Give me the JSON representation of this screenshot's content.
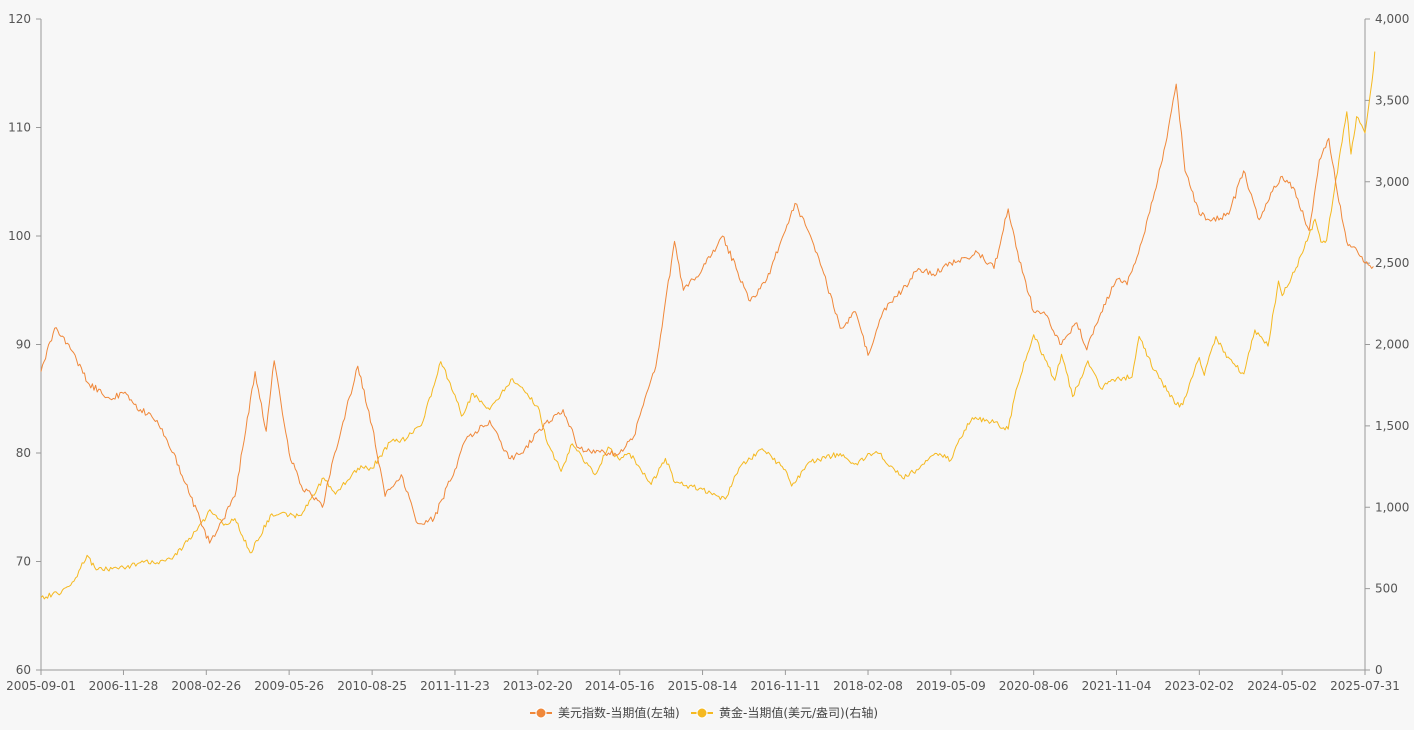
{
  "chart_data": {
    "type": "line",
    "x_ticks": [
      "2005-09-01",
      "2006-11-28",
      "2008-02-26",
      "2009-05-26",
      "2010-08-25",
      "2011-11-23",
      "2013-02-20",
      "2014-05-16",
      "2015-08-14",
      "2016-11-11",
      "2018-02-08",
      "2019-05-09",
      "2020-08-06",
      "2021-11-04",
      "2023-02-02",
      "2024-05-02",
      "2025-07-31"
    ],
    "y_left": {
      "min": 60,
      "max": 120,
      "ticks": [
        "60",
        "70",
        "80",
        "90",
        "100",
        "110",
        "120"
      ]
    },
    "y_right": {
      "min": 0,
      "max": 4000,
      "ticks": [
        "0",
        "500",
        "1,000",
        "1,500",
        "2,000",
        "2,500",
        "3,000",
        "3,500",
        "4,000"
      ]
    },
    "legend_position": "bottom-center",
    "grid": false,
    "series": [
      {
        "name": "美元指数-当期值(左轴)",
        "axis": "left",
        "color": "#f0883a",
        "x": [
          "2005-09-01",
          "2005-11-15",
          "2006-02-01",
          "2006-05-15",
          "2006-09-15",
          "2006-11-28",
          "2007-03-01",
          "2007-06-01",
          "2007-09-01",
          "2007-12-01",
          "2008-03-15",
          "2008-05-01",
          "2008-08-01",
          "2008-11-20",
          "2009-01-20",
          "2009-03-05",
          "2009-05-26",
          "2009-08-01",
          "2009-11-25",
          "2010-02-01",
          "2010-06-07",
          "2010-08-25",
          "2010-11-04",
          "2011-02-01",
          "2011-05-03",
          "2011-08-01",
          "2011-11-23",
          "2012-01-13",
          "2012-06-01",
          "2012-09-14",
          "2012-12-01",
          "2013-02-20",
          "2013-07-09",
          "2013-10-01",
          "2014-01-01",
          "2014-03-15",
          "2014-05-16",
          "2014-08-01",
          "2014-10-01",
          "2014-12-01",
          "2015-03-13",
          "2015-05-01",
          "2015-08-14",
          "2015-12-02",
          "2016-02-15",
          "2016-05-02",
          "2016-08-01",
          "2016-11-11",
          "2017-01-03",
          "2017-03-01",
          "2017-06-01",
          "2017-09-08",
          "2017-12-01",
          "2018-02-08",
          "2018-05-01",
          "2018-08-15",
          "2018-11-12",
          "2019-02-01",
          "2019-05-09",
          "2019-08-01",
          "2019-10-01",
          "2020-01-01",
          "2020-03-19",
          "2020-05-01",
          "2020-08-06",
          "2020-10-01",
          "2021-01-06",
          "2021-03-31",
          "2021-05-25",
          "2021-08-01",
          "2021-11-04",
          "2022-01-01",
          "2022-04-01",
          "2022-07-14",
          "2022-09-28",
          "2022-11-15",
          "2023-02-02",
          "2023-04-14",
          "2023-07-14",
          "2023-10-03",
          "2023-12-28",
          "2024-03-01",
          "2024-05-02",
          "2024-07-01",
          "2024-09-27",
          "2024-11-22",
          "2025-01-13",
          "2025-03-01",
          "2025-04-21",
          "2025-06-01",
          "2025-07-31",
          "2025-09-15"
        ],
        "y": [
          87.5,
          91.5,
          90,
          86.5,
          85,
          85.5,
          84,
          83,
          80,
          76,
          71.7,
          73,
          76,
          87.5,
          82,
          88.5,
          80,
          77,
          75,
          80,
          88,
          82.5,
          76,
          78,
          73.5,
          74,
          78.5,
          81,
          83,
          79.5,
          80,
          82,
          84,
          80.5,
          80,
          80,
          80,
          81.5,
          85,
          88,
          99.5,
          95,
          97,
          100,
          97,
          94,
          96,
          100.5,
          103,
          101,
          97,
          91.5,
          93,
          89,
          93,
          95,
          97,
          96.5,
          97.5,
          98,
          98.5,
          97,
          102.5,
          99,
          93,
          93,
          90,
          92,
          89.5,
          92.5,
          96,
          95.5,
          100,
          107,
          114,
          106,
          102,
          101.5,
          102,
          106,
          101.5,
          104,
          105.5,
          104.5,
          100.5,
          107,
          109,
          104,
          99.5,
          99,
          97.5,
          97.2
        ]
      },
      {
        "name": "黄金-当期值(美元/盎司)(右轴)",
        "axis": "right",
        "color": "#f5b921",
        "x": [
          "2005-09-01",
          "2005-12-01",
          "2006-03-01",
          "2006-05-12",
          "2006-07-01",
          "2006-11-28",
          "2007-03-01",
          "2007-06-01",
          "2007-09-01",
          "2007-11-15",
          "2008-02-26",
          "2008-03-17",
          "2008-06-01",
          "2008-08-01",
          "2008-10-24",
          "2009-02-20",
          "2009-05-26",
          "2009-08-01",
          "2009-12-02",
          "2010-02-05",
          "2010-06-07",
          "2010-08-25",
          "2010-12-01",
          "2011-03-01",
          "2011-06-01",
          "2011-09-06",
          "2011-11-23",
          "2011-12-29",
          "2012-03-01",
          "2012-06-01",
          "2012-10-04",
          "2013-01-01",
          "2013-02-20",
          "2013-04-15",
          "2013-06-28",
          "2013-08-28",
          "2013-12-31",
          "2014-03-14",
          "2014-05-16",
          "2014-07-10",
          "2014-11-05",
          "2015-01-22",
          "2015-03-17",
          "2015-08-14",
          "2015-12-17",
          "2016-03-01",
          "2016-07-06",
          "2016-11-11",
          "2016-12-15",
          "2017-04-01",
          "2017-09-08",
          "2017-12-12",
          "2018-02-08",
          "2018-04-11",
          "2018-08-16",
          "2018-11-01",
          "2019-02-20",
          "2019-05-09",
          "2019-06-25",
          "2019-09-04",
          "2020-01-01",
          "2020-03-19",
          "2020-05-01",
          "2020-08-06",
          "2020-11-30",
          "2021-01-06",
          "2021-03-08",
          "2021-05-31",
          "2021-08-09",
          "2021-11-04",
          "2022-01-28",
          "2022-03-08",
          "2022-06-01",
          "2022-09-28",
          "2022-11-03",
          "2023-02-02",
          "2023-03-01",
          "2023-05-04",
          "2023-07-01",
          "2023-10-05",
          "2023-12-04",
          "2024-02-14",
          "2024-04-12",
          "2024-05-02",
          "2024-07-17",
          "2024-09-26",
          "2024-10-30",
          "2024-12-01",
          "2025-01-01",
          "2025-04-22",
          "2025-05-15",
          "2025-06-15",
          "2025-07-31",
          "2025-09-08",
          "2025-09-23"
        ],
        "y": [
          445,
          470,
          545,
          705,
          615,
          630,
          660,
          660,
          700,
          790,
          940,
          985,
          890,
          930,
          720,
          960,
          950,
          950,
          1180,
          1080,
          1240,
          1240,
          1400,
          1420,
          1530,
          1895,
          1690,
          1560,
          1700,
          1600,
          1790,
          1680,
          1620,
          1390,
          1220,
          1390,
          1200,
          1370,
          1290,
          1330,
          1140,
          1300,
          1150,
          1110,
          1050,
          1240,
          1360,
          1230,
          1130,
          1280,
          1330,
          1260,
          1330,
          1330,
          1180,
          1230,
          1330,
          1290,
          1420,
          1550,
          1520,
          1480,
          1720,
          2060,
          1780,
          1940,
          1680,
          1900,
          1730,
          1790,
          1800,
          2050,
          1840,
          1630,
          1630,
          1920,
          1810,
          2050,
          1920,
          1820,
          2090,
          1990,
          2390,
          2300,
          2470,
          2670,
          2770,
          2630,
          2640,
          3430,
          3170,
          3400,
          3300,
          3620,
          3800
        ]
      }
    ]
  }
}
